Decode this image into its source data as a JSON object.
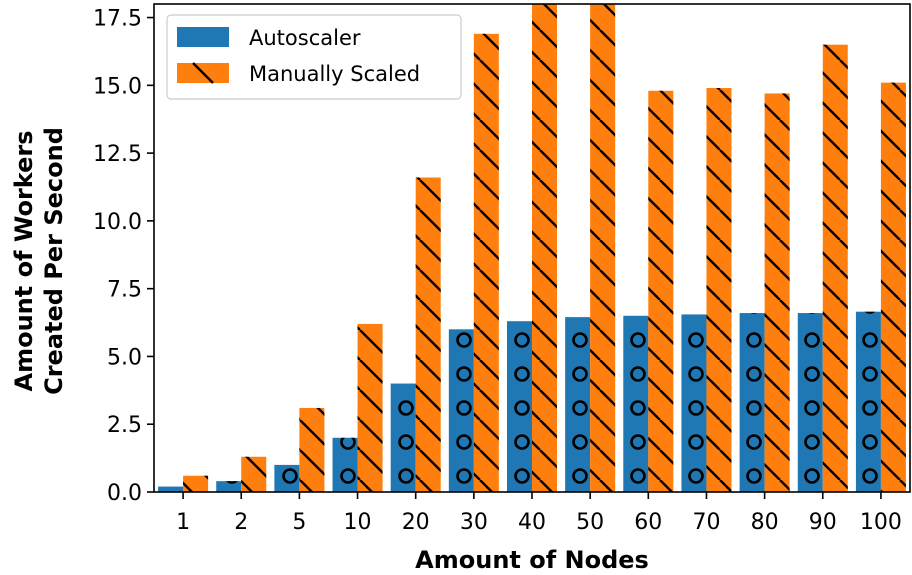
{
  "chart_data": {
    "type": "bar",
    "categories": [
      "1",
      "2",
      "5",
      "10",
      "20",
      "30",
      "40",
      "50",
      "60",
      "70",
      "80",
      "90",
      "100"
    ],
    "series": [
      {
        "name": "Autoscaler",
        "color": "#1f77b4",
        "hatch": "circles",
        "values": [
          0.2,
          0.4,
          1.0,
          2.0,
          4.0,
          6.0,
          6.3,
          6.45,
          6.5,
          6.55,
          6.6,
          6.6,
          6.65
        ]
      },
      {
        "name": "Manually Scaled",
        "color": "#ff7f0e",
        "hatch": "backslash",
        "values": [
          0.6,
          1.3,
          3.1,
          6.2,
          11.6,
          16.9,
          18.0,
          18.0,
          14.8,
          14.9,
          14.7,
          16.5,
          15.1
        ]
      }
    ],
    "xlabel": "Amount of Nodes",
    "ylabel": [
      "Amount of Workers",
      "Created Per Second"
    ],
    "ylim": [
      0,
      18
    ],
    "yticks": [
      "0.0",
      "2.5",
      "5.0",
      "7.5",
      "10.0",
      "12.5",
      "15.0",
      "17.5"
    ],
    "legend_position": "top-left",
    "grid": false
  }
}
